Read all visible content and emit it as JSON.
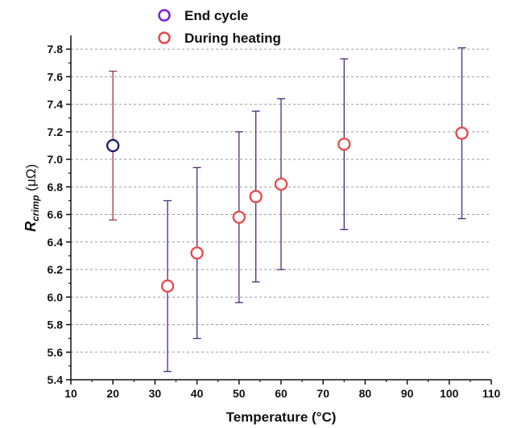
{
  "chart_data": {
    "type": "scatter",
    "xlabel": "Temperature (°C)",
    "ylabel": {
      "main": "R",
      "subscript": "crimp",
      "unit": " (μΩ)"
    },
    "xlim": [
      10,
      110
    ],
    "ylim": [
      5.4,
      7.9
    ],
    "xticks": [
      10,
      20,
      30,
      40,
      50,
      60,
      70,
      80,
      90,
      100,
      110
    ],
    "xtick_labels": [
      "10",
      "20",
      "30",
      "40",
      "50",
      "60",
      "70",
      "80",
      "90",
      "100",
      "110"
    ],
    "yticks": [
      5.4,
      5.6,
      5.8,
      6.0,
      6.2,
      6.4,
      6.6,
      6.8,
      7.0,
      7.2,
      7.4,
      7.6,
      7.8
    ],
    "ytick_labels": [
      "5.4",
      "5.6",
      "5.8",
      "6.0",
      "6.2",
      "6.4",
      "6.6",
      "6.8",
      "7.0",
      "7.2",
      "7.4",
      "7.6",
      "7.8"
    ],
    "grid": "horizontal-dashed",
    "legend_position": "top-left",
    "series": [
      {
        "name": "End cycle",
        "marker_color": "#1a1a6e",
        "legend_color": "#7b1fd6",
        "errorbar_color": "#9b3a3a",
        "points": [
          {
            "x": 20,
            "y": 7.1,
            "ylow": 6.56,
            "yhigh": 7.64
          }
        ]
      },
      {
        "name": "During heating",
        "marker_color": "#e8474a",
        "legend_color": "#e8474a",
        "errorbar_color": "#4b2a7b",
        "points": [
          {
            "x": 33,
            "y": 6.08,
            "ylow": 5.46,
            "yhigh": 6.7
          },
          {
            "x": 40,
            "y": 6.32,
            "ylow": 5.7,
            "yhigh": 6.94
          },
          {
            "x": 50,
            "y": 6.58,
            "ylow": 5.96,
            "yhigh": 7.2
          },
          {
            "x": 54,
            "y": 6.73,
            "ylow": 6.11,
            "yhigh": 7.35
          },
          {
            "x": 60,
            "y": 6.82,
            "ylow": 6.2,
            "yhigh": 7.44
          },
          {
            "x": 75,
            "y": 7.11,
            "ylow": 6.49,
            "yhigh": 7.73
          },
          {
            "x": 103,
            "y": 7.19,
            "ylow": 6.57,
            "yhigh": 7.81
          }
        ]
      }
    ]
  }
}
